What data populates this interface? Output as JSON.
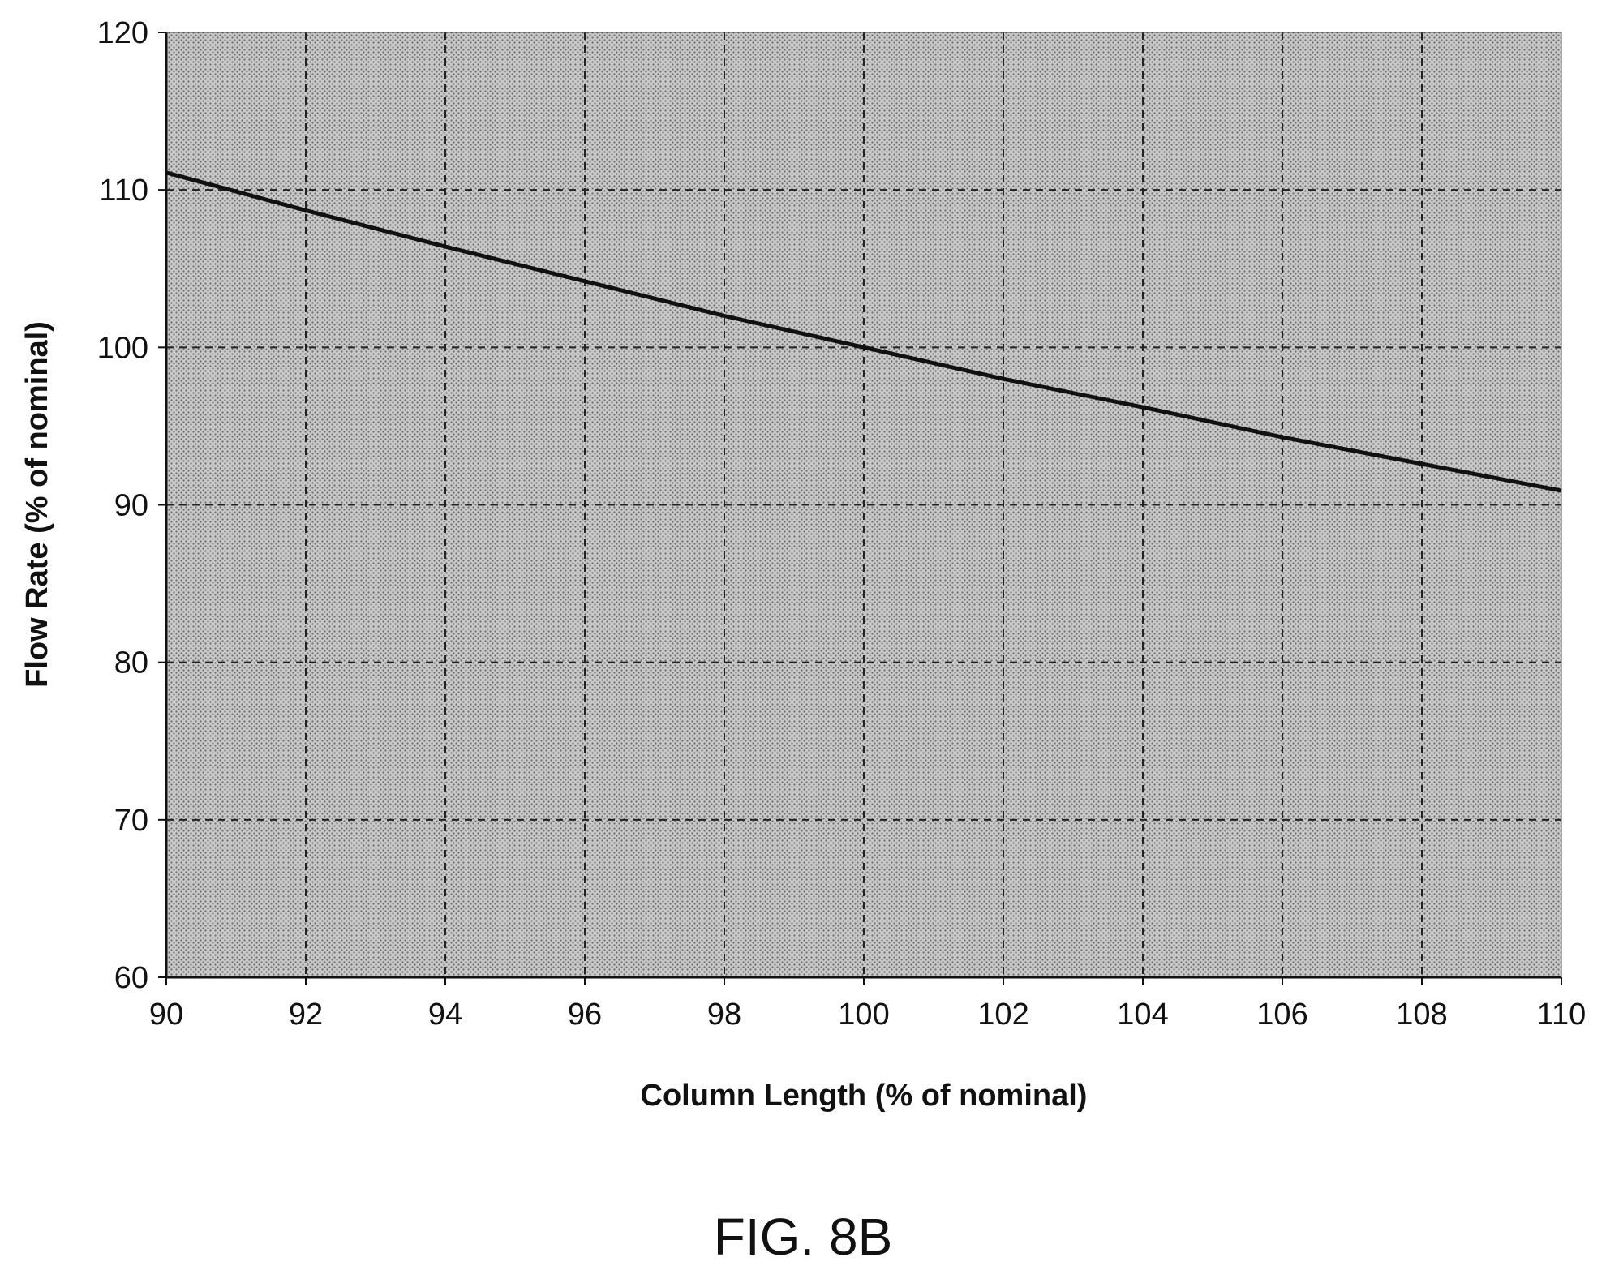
{
  "figure_label": "FIG. 8B",
  "chart_data": {
    "type": "line",
    "xlabel": "Column Length (% of nominal)",
    "ylabel": "Flow Rate (% of nominal)",
    "xlim": [
      90,
      110
    ],
    "ylim": [
      60,
      120
    ],
    "xticks": [
      90,
      92,
      94,
      96,
      98,
      100,
      102,
      104,
      106,
      108,
      110
    ],
    "yticks": [
      60,
      70,
      80,
      90,
      100,
      110,
      120
    ],
    "grid": true,
    "legend": "none",
    "series": [
      {
        "x": [
          90,
          92,
          94,
          96,
          98,
          100,
          102,
          104,
          106,
          108,
          110
        ],
        "y": [
          111.1,
          108.7,
          106.4,
          104.2,
          102.0,
          100.0,
          98.0,
          96.2,
          94.3,
          92.6,
          90.9
        ]
      }
    ],
    "colors": {
      "plot_background": "#bdbdbd",
      "line": "#111111",
      "grid": "#222222"
    }
  }
}
